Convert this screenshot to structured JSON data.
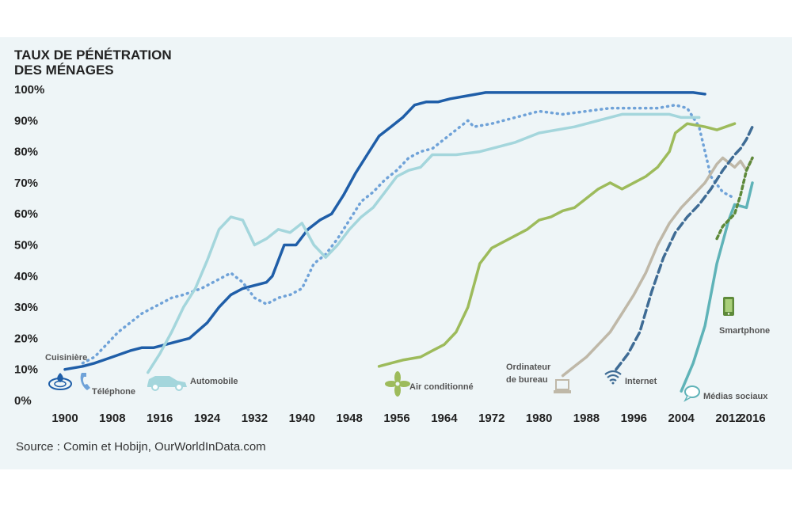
{
  "chart_data": {
    "type": "line",
    "ylabel": [
      "TAUX DE PÉNÉTRATION",
      "DES MÉNAGES"
    ],
    "source": "Source : Comin et Hobijn, OurWorldInData.com",
    "xlim": [
      1900,
      2016
    ],
    "ylim": [
      0,
      100
    ],
    "y_ticks": [
      0,
      10,
      20,
      30,
      40,
      50,
      60,
      70,
      80,
      90,
      100
    ],
    "y_tick_labels": [
      "0%",
      "10%",
      "20%",
      "30%",
      "40%",
      "50%",
      "60%",
      "70%",
      "80%",
      "90%",
      "100%"
    ],
    "x_ticks": [
      1900,
      1908,
      1916,
      1924,
      1932,
      1940,
      1948,
      1956,
      1964,
      1972,
      1980,
      1988,
      1996,
      2004,
      2012,
      2016
    ],
    "x_tick_labels": [
      "1900",
      "1908",
      "1916",
      "1924",
      "1932",
      "1940",
      "1948",
      "1956",
      "1964",
      "1972",
      "1980",
      "1988",
      "1996",
      "2004",
      "2012",
      "2016"
    ],
    "grid": false,
    "legend": "inline labels",
    "series": [
      {
        "name": "Cuisinière",
        "color": "#1f5ea8",
        "style": "solid",
        "icon": "stove-icon",
        "points": [
          [
            1900,
            10
          ],
          [
            1903,
            11
          ],
          [
            1905,
            12
          ],
          [
            1908,
            14
          ],
          [
            1911,
            16
          ],
          [
            1913,
            17
          ],
          [
            1915,
            17
          ],
          [
            1917,
            18
          ],
          [
            1919,
            19
          ],
          [
            1921,
            20
          ],
          [
            1924,
            25
          ],
          [
            1926,
            30
          ],
          [
            1928,
            34
          ],
          [
            1930,
            36
          ],
          [
            1932,
            37
          ],
          [
            1934,
            38
          ],
          [
            1935,
            40
          ],
          [
            1937,
            50
          ],
          [
            1939,
            50
          ],
          [
            1941,
            55
          ],
          [
            1943,
            58
          ],
          [
            1945,
            60
          ],
          [
            1947,
            66
          ],
          [
            1949,
            73
          ],
          [
            1951,
            79
          ],
          [
            1953,
            85
          ],
          [
            1955,
            88
          ],
          [
            1957,
            91
          ],
          [
            1959,
            95
          ],
          [
            1961,
            96
          ],
          [
            1963,
            96
          ],
          [
            1965,
            97
          ],
          [
            1968,
            98
          ],
          [
            1971,
            99
          ],
          [
            1980,
            99
          ],
          [
            1990,
            99
          ],
          [
            2000,
            99
          ],
          [
            2006,
            99
          ],
          [
            2008,
            98.5
          ]
        ]
      },
      {
        "name": "Téléphone",
        "color": "#6fa2d8",
        "style": "dotted",
        "icon": "phone-icon",
        "points": [
          [
            1903,
            12
          ],
          [
            1905,
            14
          ],
          [
            1907,
            18
          ],
          [
            1909,
            22
          ],
          [
            1911,
            25
          ],
          [
            1913,
            28
          ],
          [
            1916,
            31
          ],
          [
            1918,
            33
          ],
          [
            1920,
            34
          ],
          [
            1923,
            36
          ],
          [
            1926,
            39
          ],
          [
            1928,
            41
          ],
          [
            1930,
            38
          ],
          [
            1932,
            33
          ],
          [
            1934,
            31
          ],
          [
            1936,
            33
          ],
          [
            1938,
            34
          ],
          [
            1940,
            36
          ],
          [
            1942,
            44
          ],
          [
            1944,
            47
          ],
          [
            1946,
            52
          ],
          [
            1948,
            58
          ],
          [
            1950,
            64
          ],
          [
            1952,
            67
          ],
          [
            1954,
            71
          ],
          [
            1956,
            74
          ],
          [
            1958,
            78
          ],
          [
            1960,
            80
          ],
          [
            1962,
            81
          ],
          [
            1964,
            84
          ],
          [
            1966,
            87
          ],
          [
            1968,
            90
          ],
          [
            1969,
            88
          ],
          [
            1972,
            89
          ],
          [
            1976,
            91
          ],
          [
            1980,
            93
          ],
          [
            1984,
            92
          ],
          [
            1988,
            93
          ],
          [
            1992,
            94
          ],
          [
            1996,
            94
          ],
          [
            2000,
            94
          ],
          [
            2003,
            95
          ],
          [
            2005,
            94
          ],
          [
            2007,
            88
          ],
          [
            2009,
            72
          ],
          [
            2011,
            67
          ],
          [
            2013,
            65
          ]
        ]
      },
      {
        "name": "Automobile",
        "color": "#a4d6dc",
        "style": "solid",
        "icon": "car-icon",
        "points": [
          [
            1914,
            9
          ],
          [
            1916,
            15
          ],
          [
            1918,
            22
          ],
          [
            1920,
            30
          ],
          [
            1922,
            36
          ],
          [
            1924,
            45
          ],
          [
            1926,
            55
          ],
          [
            1928,
            59
          ],
          [
            1930,
            58
          ],
          [
            1932,
            50
          ],
          [
            1934,
            52
          ],
          [
            1936,
            55
          ],
          [
            1938,
            54
          ],
          [
            1940,
            57
          ],
          [
            1942,
            50
          ],
          [
            1944,
            46
          ],
          [
            1946,
            50
          ],
          [
            1948,
            55
          ],
          [
            1950,
            59
          ],
          [
            1952,
            62
          ],
          [
            1954,
            67
          ],
          [
            1956,
            72
          ],
          [
            1958,
            74
          ],
          [
            1960,
            75
          ],
          [
            1962,
            79
          ],
          [
            1966,
            79
          ],
          [
            1970,
            80
          ],
          [
            1976,
            83
          ],
          [
            1980,
            86
          ],
          [
            1986,
            88
          ],
          [
            1990,
            90
          ],
          [
            1994,
            92
          ],
          [
            1998,
            92
          ],
          [
            2002,
            92
          ],
          [
            2004,
            91
          ],
          [
            2007,
            91
          ]
        ]
      },
      {
        "name": "Air conditionné",
        "color": "#9dbb5b",
        "style": "solid",
        "icon": "fan-icon",
        "points": [
          [
            1953,
            11
          ],
          [
            1955,
            12
          ],
          [
            1957,
            13
          ],
          [
            1960,
            14
          ],
          [
            1962,
            16
          ],
          [
            1964,
            18
          ],
          [
            1966,
            22
          ],
          [
            1968,
            30
          ],
          [
            1970,
            44
          ],
          [
            1972,
            49
          ],
          [
            1974,
            51
          ],
          [
            1976,
            53
          ],
          [
            1978,
            55
          ],
          [
            1980,
            58
          ],
          [
            1982,
            59
          ],
          [
            1984,
            61
          ],
          [
            1986,
            62
          ],
          [
            1988,
            65
          ],
          [
            1990,
            68
          ],
          [
            1992,
            70
          ],
          [
            1994,
            68
          ],
          [
            1996,
            70
          ],
          [
            1998,
            72
          ],
          [
            2000,
            75
          ],
          [
            2002,
            80
          ],
          [
            2003,
            86
          ],
          [
            2005,
            89
          ],
          [
            2008,
            88
          ],
          [
            2010,
            87
          ],
          [
            2013,
            89
          ]
        ]
      },
      {
        "name": "Ordinateur de bureau",
        "color": "#bfb8a8",
        "style": "solid",
        "icon": "computer-icon",
        "points": [
          [
            1984,
            8
          ],
          [
            1986,
            11
          ],
          [
            1988,
            14
          ],
          [
            1990,
            18
          ],
          [
            1992,
            22
          ],
          [
            1994,
            28
          ],
          [
            1996,
            34
          ],
          [
            1998,
            41
          ],
          [
            2000,
            50
          ],
          [
            2002,
            57
          ],
          [
            2004,
            62
          ],
          [
            2006,
            66
          ],
          [
            2008,
            70
          ],
          [
            2010,
            76
          ],
          [
            2011,
            78
          ],
          [
            2013,
            75
          ],
          [
            2014,
            77
          ],
          [
            2015,
            74
          ],
          [
            2016,
            78
          ]
        ]
      },
      {
        "name": "Internet",
        "color": "#3f6c95",
        "style": "dashed",
        "icon": "wifi-icon",
        "points": [
          [
            1993,
            10
          ],
          [
            1995,
            15
          ],
          [
            1997,
            22
          ],
          [
            1999,
            35
          ],
          [
            2001,
            46
          ],
          [
            2003,
            54
          ],
          [
            2005,
            59
          ],
          [
            2007,
            63
          ],
          [
            2009,
            68
          ],
          [
            2011,
            74
          ],
          [
            2013,
            79
          ],
          [
            2014,
            81
          ],
          [
            2015,
            84
          ],
          [
            2016,
            88
          ]
        ]
      },
      {
        "name": "Médias sociaux",
        "color": "#5fb3b8",
        "style": "solid",
        "icon": "speech-bubble-icon",
        "points": [
          [
            2004,
            3
          ],
          [
            2006,
            12
          ],
          [
            2008,
            24
          ],
          [
            2009,
            34
          ],
          [
            2010,
            44
          ],
          [
            2011,
            51
          ],
          [
            2012,
            58
          ],
          [
            2013,
            63
          ],
          [
            2015,
            62
          ],
          [
            2016,
            70
          ]
        ]
      },
      {
        "name": "Smartphone",
        "color": "#5e8a3a",
        "style": "dotted-dash",
        "icon": "smartphone-icon",
        "points": [
          [
            2010,
            52
          ],
          [
            2011,
            56
          ],
          [
            2012,
            58
          ],
          [
            2013,
            60
          ],
          [
            2014,
            66
          ],
          [
            2015,
            74
          ],
          [
            2016,
            78
          ]
        ]
      }
    ]
  }
}
